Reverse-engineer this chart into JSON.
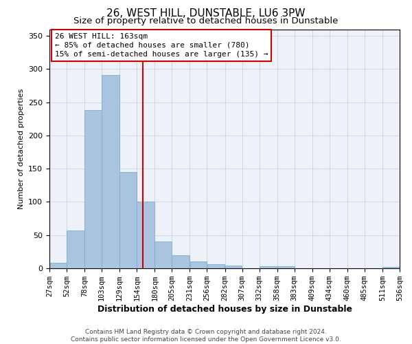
{
  "title": "26, WEST HILL, DUNSTABLE, LU6 3PW",
  "subtitle": "Size of property relative to detached houses in Dunstable",
  "xlabel": "Distribution of detached houses by size in Dunstable",
  "ylabel": "Number of detached properties",
  "footer_line1": "Contains HM Land Registry data © Crown copyright and database right 2024.",
  "footer_line2": "Contains public sector information licensed under the Open Government Licence v3.0.",
  "bar_edges": [
    27,
    52,
    78,
    103,
    129,
    154,
    180,
    205,
    231,
    256,
    282,
    307,
    332,
    358,
    383,
    409,
    434,
    460,
    485,
    511,
    536
  ],
  "bar_values": [
    8,
    57,
    238,
    291,
    145,
    100,
    40,
    20,
    10,
    6,
    4,
    0,
    3,
    3,
    0,
    0,
    0,
    0,
    0,
    2
  ],
  "bar_color": "#aac4e0",
  "bar_edge_color": "#7aafd4",
  "tick_labels": [
    "27sqm",
    "52sqm",
    "78sqm",
    "103sqm",
    "129sqm",
    "154sqm",
    "180sqm",
    "205sqm",
    "231sqm",
    "256sqm",
    "282sqm",
    "307sqm",
    "332sqm",
    "358sqm",
    "383sqm",
    "409sqm",
    "434sqm",
    "460sqm",
    "485sqm",
    "511sqm",
    "536sqm"
  ],
  "ylim": [
    0,
    360
  ],
  "yticks": [
    0,
    50,
    100,
    150,
    200,
    250,
    300,
    350
  ],
  "property_size": 163,
  "vline_color": "#cc0000",
  "annotation_line1": "26 WEST HILL: 163sqm",
  "annotation_line2": "← 85% of detached houses are smaller (780)",
  "annotation_line3": "15% of semi-detached houses are larger (135) →",
  "bg_color": "#eef2f8",
  "grid_color": "#ced8ea",
  "title_fontsize": 11,
  "subtitle_fontsize": 9.5,
  "xlabel_fontsize": 9,
  "ylabel_fontsize": 8,
  "tick_fontsize": 7.5,
  "annotation_fontsize": 8,
  "footer_fontsize": 6.5
}
